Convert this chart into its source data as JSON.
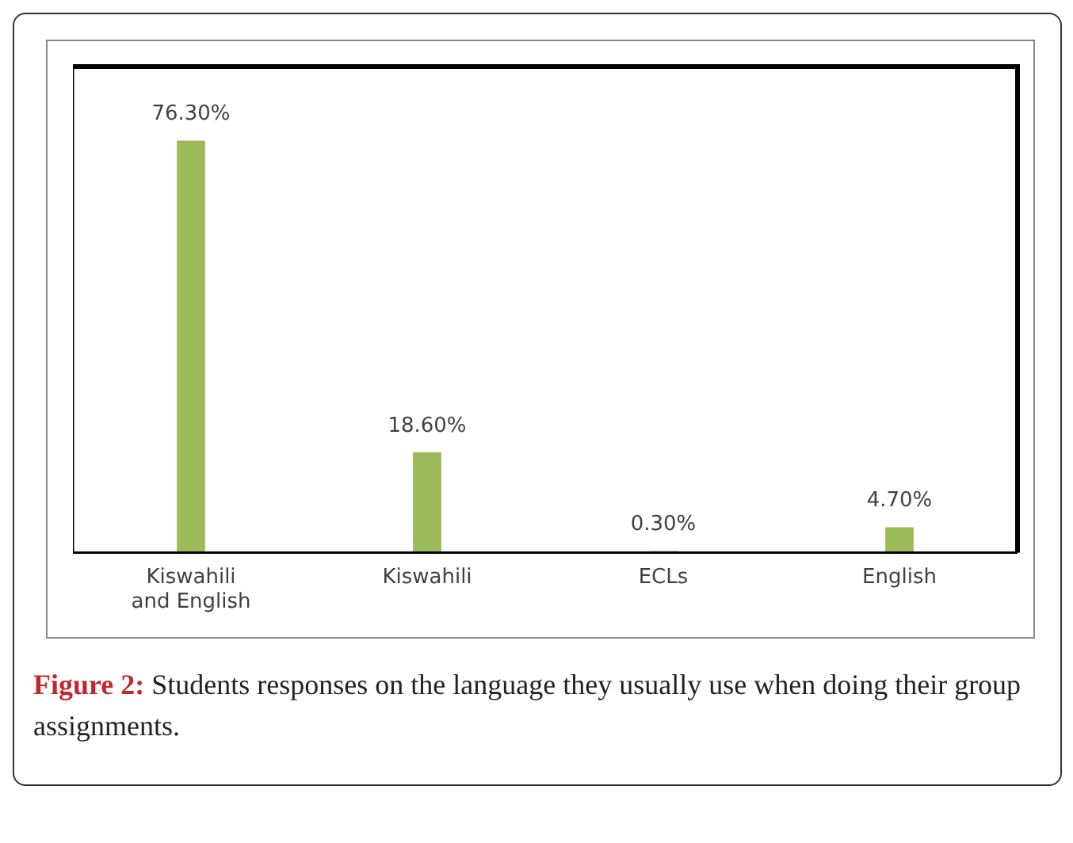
{
  "chart_data": {
    "type": "bar",
    "categories": [
      "Kiswahili and English",
      "Kiswahili",
      "ECLs",
      "English"
    ],
    "values": [
      76.3,
      18.6,
      0.3,
      4.7
    ],
    "value_labels": [
      "76.30%",
      "18.60%",
      "0.30%",
      "4.70%"
    ],
    "color": "#9bbb59",
    "grid": false,
    "legend": false,
    "annotations": [
      "Figure 2: Students responses on the language they usually use when doing their group assignments."
    ]
  }
}
